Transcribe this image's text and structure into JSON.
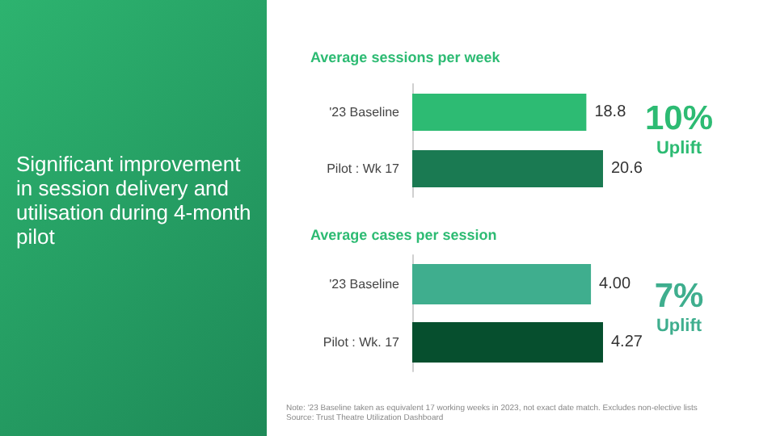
{
  "chart_data": [
    {
      "type": "bar",
      "orientation": "horizontal",
      "title": "Average sessions per week",
      "categories": [
        "'23 Baseline",
        "Pilot : Wk 17"
      ],
      "values": [
        18.8,
        20.6
      ],
      "colors": [
        "#2dbb73",
        "#1a7a52"
      ],
      "data_labels": true,
      "annotations": [
        "Significant improvement in session delivery and utilisation during 4-month pilot",
        "10%",
        "Uplift"
      ]
    },
    {
      "type": "bar",
      "orientation": "horizontal",
      "title": "Average cases per session",
      "categories": [
        "'23 Baseline",
        "Pilot : Wk. 17"
      ],
      "values": [
        4.0,
        4.27
      ],
      "value_labels": [
        "4.00",
        "4.27"
      ],
      "colors": [
        "#3fae8e",
        "#064f2e"
      ],
      "annotations": [
        "7%",
        "Uplift",
        "Note: '23 Baseline taken as equivalent 17 working weeks in 2023, not exact date match. Excludes non-elective lists",
        "Source: Trust Theatre Utilization Dashboard"
      ]
    }
  ]
}
